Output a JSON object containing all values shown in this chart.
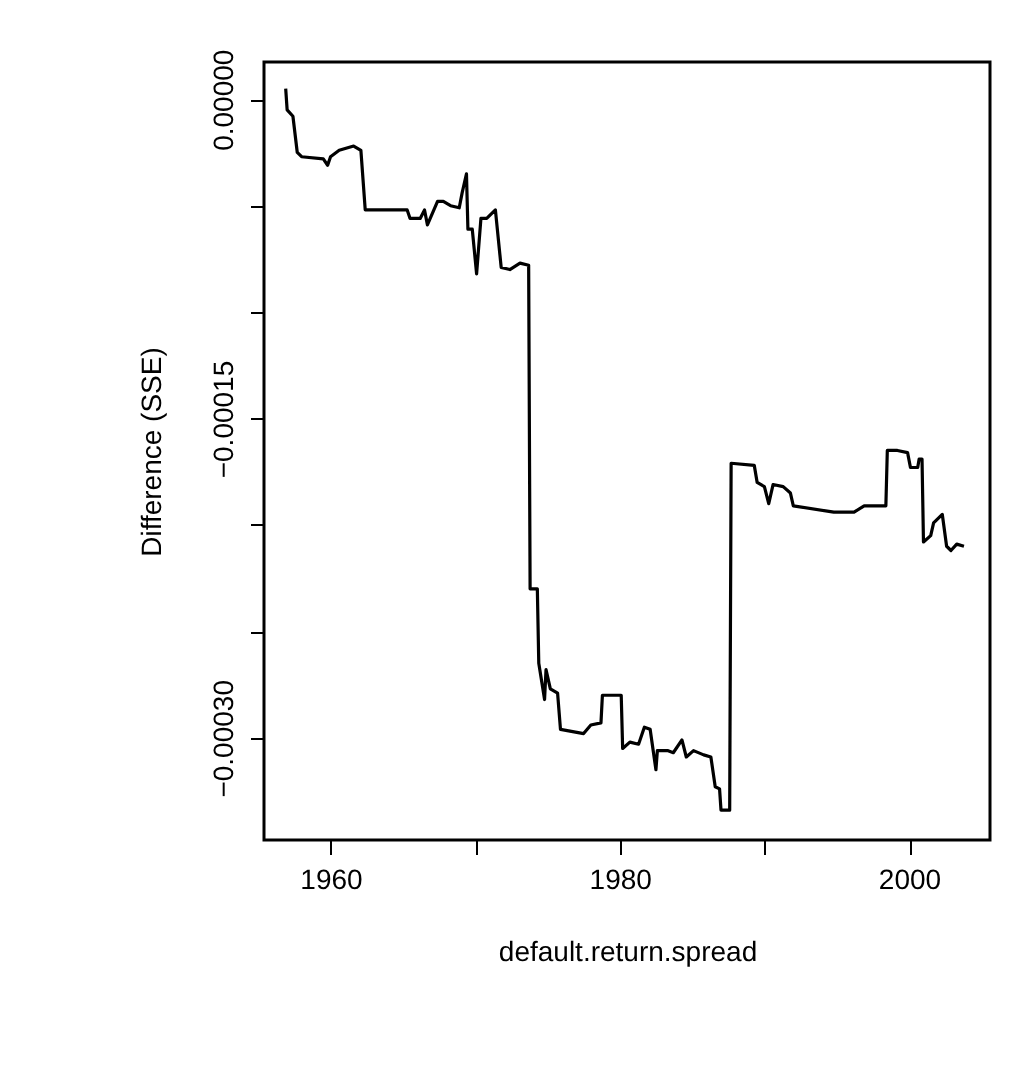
{
  "chart_data": {
    "type": "line",
    "xlabel": "default.return.spread",
    "ylabel": "Difference (SSE)",
    "x": [
      1956.9,
      1957.0,
      1957.4,
      1957.7,
      1958.0,
      1959.5,
      1959.8,
      1960.0,
      1960.6,
      1961.6,
      1962.1,
      1962.4,
      1965.3,
      1965.5,
      1966.2,
      1966.5,
      1966.7,
      1967.4,
      1967.8,
      1968.3,
      1968.9,
      1969.1,
      1969.4,
      1969.5,
      1969.8,
      1970.1,
      1970.4,
      1970.8,
      1971.4,
      1971.8,
      1972.4,
      1973.1,
      1973.7,
      1973.8,
      1974.3,
      1974.4,
      1974.8,
      1974.9,
      1975.2,
      1975.7,
      1975.9,
      1977.5,
      1978.0,
      1978.7,
      1978.8,
      1980.1,
      1980.2,
      1980.7,
      1981.3,
      1981.7,
      1982.1,
      1982.5,
      1982.6,
      1983.3,
      1983.7,
      1984.3,
      1984.6,
      1985.1,
      1985.8,
      1986.3,
      1986.6,
      1986.9,
      1987.0,
      1987.6,
      1987.7,
      1989.3,
      1989.5,
      1990.0,
      1990.3,
      1990.6,
      1991.3,
      1991.8,
      1992.0,
      1994.8,
      1996.2,
      1996.9,
      1998.4,
      1998.5,
      1999.2,
      1999.9,
      2000.1,
      2000.6,
      2000.7,
      2000.9,
      2001.0,
      2001.5,
      2001.7,
      2002.3,
      2002.6,
      2002.9,
      2003.3,
      2003.8
    ],
    "series": [
      {
        "color": "#000000",
        "values": [
          5e-06,
          -5e-06,
          -8e-06,
          -2.5e-05,
          -2.7e-05,
          -2.8e-05,
          -3.1e-05,
          -2.7e-05,
          -2.4e-05,
          -2.2e-05,
          -2.4e-05,
          -5.2e-05,
          -5.2e-05,
          -5.6e-05,
          -5.6e-05,
          -5.2e-05,
          -5.9e-05,
          -4.8e-05,
          -4.8e-05,
          -5e-05,
          -5.1e-05,
          -4.4e-05,
          -3.5e-05,
          -6.1e-05,
          -6.1e-05,
          -8.2e-05,
          -5.6e-05,
          -5.6e-05,
          -5.2e-05,
          -7.9e-05,
          -8e-05,
          -7.7e-05,
          -7.8e-05,
          -0.00023,
          -0.00023,
          -0.000265,
          -0.000282,
          -0.000268,
          -0.000277,
          -0.000279,
          -0.000296,
          -0.000298,
          -0.000294,
          -0.000293,
          -0.00028,
          -0.00028,
          -0.000305,
          -0.000302,
          -0.000303,
          -0.000295,
          -0.000296,
          -0.000315,
          -0.000306,
          -0.000306,
          -0.000307,
          -0.000301,
          -0.000309,
          -0.000306,
          -0.000308,
          -0.000309,
          -0.000323,
          -0.000324,
          -0.000334,
          -0.000334,
          -0.000171,
          -0.000172,
          -0.00018,
          -0.000182,
          -0.00019,
          -0.000181,
          -0.000182,
          -0.000185,
          -0.000191,
          -0.000194,
          -0.000194,
          -0.000191,
          -0.000191,
          -0.000165,
          -0.000165,
          -0.000166,
          -0.000173,
          -0.000173,
          -0.000169,
          -0.000169,
          -0.000208,
          -0.000205,
          -0.000199,
          -0.000195,
          -0.00021,
          -0.000212,
          -0.000209,
          -0.00021
        ]
      }
    ],
    "xlim": [
      1955.4,
      2005.6
    ],
    "ylim": [
      -0.000348,
      1.75e-05
    ],
    "xticks": [
      1960,
      {
        "value": 1970,
        "label": null
      },
      1980,
      {
        "value": 1990,
        "label": null
      },
      2000
    ],
    "yticks": [
      {
        "value": 0,
        "label": "0.00000"
      },
      {
        "value": -5e-05,
        "label": null
      },
      {
        "value": -0.0001,
        "label": null
      },
      {
        "value": -0.00015,
        "label": "−0.00015"
      },
      {
        "value": -0.0002,
        "label": null
      },
      {
        "value": -0.00025,
        "label": null
      },
      {
        "value": -0.0003,
        "label": "−0.00030"
      }
    ],
    "grid": false,
    "marker": "none",
    "line_style": "solid"
  }
}
